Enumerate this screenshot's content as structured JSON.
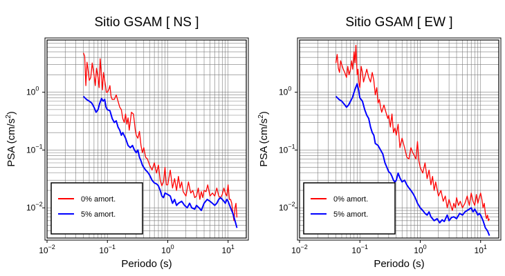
{
  "chart_data": [
    {
      "type": "line",
      "title": "Sitio GSAM [ NS ]",
      "xlabel": "Periodo (s)",
      "ylabel_main": "PSA (cm/s",
      "ylabel_sup": "2",
      "ylabel_tail": ")",
      "xscale": "log",
      "yscale": "log",
      "xlim": [
        0.01,
        20
      ],
      "ylim": [
        0.003,
        8
      ],
      "xticks": [
        {
          "base": "10",
          "exp": "−2"
        },
        {
          "base": "10",
          "exp": "−1"
        },
        {
          "base": "10",
          "exp": "0"
        },
        {
          "base": "10",
          "exp": "1"
        }
      ],
      "yticks": [
        {
          "base": "10",
          "exp": "−2"
        },
        {
          "base": "10",
          "exp": "−1"
        },
        {
          "base": "10",
          "exp": "0"
        }
      ],
      "grid": true,
      "legend_position": "bottom-left",
      "series": [
        {
          "name": "0% amort.",
          "color": "#ff0000",
          "x": [
            0.04,
            0.042,
            0.044,
            0.046,
            0.048,
            0.05,
            0.053,
            0.056,
            0.06,
            0.063,
            0.066,
            0.07,
            0.073,
            0.076,
            0.08,
            0.083,
            0.086,
            0.09,
            0.093,
            0.096,
            0.1,
            0.105,
            0.11,
            0.115,
            0.12,
            0.13,
            0.14,
            0.15,
            0.16,
            0.17,
            0.18,
            0.19,
            0.2,
            0.21,
            0.22,
            0.23,
            0.25,
            0.27,
            0.29,
            0.3,
            0.32,
            0.34,
            0.36,
            0.38,
            0.4,
            0.43,
            0.46,
            0.5,
            0.55,
            0.6,
            0.65,
            0.7,
            0.75,
            0.8,
            0.85,
            0.9,
            0.95,
            1.0,
            1.1,
            1.2,
            1.3,
            1.4,
            1.5,
            1.6,
            1.7,
            1.8,
            2.0,
            2.2,
            2.4,
            2.6,
            2.8,
            3.0,
            3.2,
            3.4,
            3.6,
            3.8,
            4.0,
            4.3,
            4.6,
            5.0,
            5.5,
            6.0,
            6.5,
            7.0,
            7.5,
            8.0,
            8.5,
            9.0,
            9.5,
            10,
            10.5,
            11,
            11.5,
            12,
            12.5,
            13,
            13.5,
            14
          ],
          "y": [
            4.8,
            4.2,
            1.3,
            3.3,
            2.4,
            1.6,
            1.8,
            3.2,
            2.0,
            1.3,
            2.6,
            1.8,
            1.2,
            3.8,
            1.8,
            1.1,
            2.2,
            1.6,
            1.3,
            1.0,
            1.0,
            1.1,
            1.3,
            0.85,
            0.75,
            0.75,
            0.9,
            0.7,
            0.55,
            0.5,
            0.35,
            0.3,
            0.42,
            0.28,
            0.36,
            0.22,
            0.45,
            0.42,
            0.22,
            0.18,
            0.16,
            0.21,
            0.12,
            0.09,
            0.11,
            0.075,
            0.07,
            0.055,
            0.045,
            0.06,
            0.04,
            0.055,
            0.03,
            0.024,
            0.028,
            0.05,
            0.025,
            0.025,
            0.045,
            0.022,
            0.032,
            0.02,
            0.035,
            0.022,
            0.028,
            0.019,
            0.016,
            0.028,
            0.018,
            0.02,
            0.015,
            0.016,
            0.022,
            0.014,
            0.019,
            0.015,
            0.02,
            0.019,
            0.025,
            0.016,
            0.018,
            0.016,
            0.022,
            0.016,
            0.015,
            0.017,
            0.022,
            0.018,
            0.016,
            0.025,
            0.014,
            0.014,
            0.012,
            0.008,
            0.006,
            0.01,
            0.012,
            0.0068
          ]
        },
        {
          "name": "5% amort.",
          "color": "#0000ff",
          "x": [
            0.04,
            0.045,
            0.05,
            0.055,
            0.06,
            0.065,
            0.07,
            0.075,
            0.08,
            0.085,
            0.09,
            0.095,
            0.1,
            0.11,
            0.12,
            0.13,
            0.14,
            0.15,
            0.16,
            0.17,
            0.18,
            0.2,
            0.22,
            0.24,
            0.26,
            0.28,
            0.3,
            0.32,
            0.34,
            0.36,
            0.38,
            0.4,
            0.43,
            0.46,
            0.5,
            0.55,
            0.6,
            0.65,
            0.7,
            0.75,
            0.8,
            0.85,
            0.9,
            1.0,
            1.1,
            1.2,
            1.3,
            1.4,
            1.5,
            1.7,
            1.9,
            2.1,
            2.3,
            2.5,
            2.8,
            3.0,
            3.3,
            3.6,
            4.0,
            4.5,
            5.0,
            5.5,
            6.0,
            6.5,
            7.0,
            7.5,
            8.0,
            8.5,
            9.0,
            9.5,
            10,
            11,
            12,
            13,
            14
          ],
          "y": [
            0.85,
            0.75,
            0.7,
            0.65,
            0.55,
            0.45,
            0.5,
            0.65,
            0.78,
            0.7,
            0.75,
            0.55,
            0.5,
            0.48,
            0.35,
            0.3,
            0.32,
            0.25,
            0.22,
            0.18,
            0.2,
            0.16,
            0.12,
            0.11,
            0.12,
            0.1,
            0.09,
            0.1,
            0.075,
            0.065,
            0.055,
            0.05,
            0.045,
            0.042,
            0.037,
            0.03,
            0.027,
            0.026,
            0.024,
            0.02,
            0.016,
            0.015,
            0.018,
            0.017,
            0.016,
            0.012,
            0.014,
            0.011,
            0.012,
            0.013,
            0.011,
            0.01,
            0.012,
            0.01,
            0.0095,
            0.011,
            0.01,
            0.009,
            0.012,
            0.014,
            0.013,
            0.012,
            0.011,
            0.012,
            0.014,
            0.015,
            0.014,
            0.013,
            0.012,
            0.014,
            0.013,
            0.01,
            0.008,
            0.006,
            0.0045
          ]
        }
      ]
    },
    {
      "type": "line",
      "title": "Sitio GSAM [ EW ]",
      "xlabel": "Periodo (s)",
      "ylabel_main": "PSA (cm/s",
      "ylabel_sup": "2",
      "ylabel_tail": ")",
      "xscale": "log",
      "yscale": "log",
      "xlim": [
        0.01,
        20
      ],
      "ylim": [
        0.003,
        8
      ],
      "xticks": [
        {
          "base": "10",
          "exp": "−2"
        },
        {
          "base": "10",
          "exp": "−1"
        },
        {
          "base": "10",
          "exp": "0"
        },
        {
          "base": "10",
          "exp": "1"
        }
      ],
      "yticks": [
        {
          "base": "10",
          "exp": "−2"
        },
        {
          "base": "10",
          "exp": "−1"
        },
        {
          "base": "10",
          "exp": "0"
        }
      ],
      "grid": true,
      "legend_position": "bottom-left",
      "series": [
        {
          "name": "0% amort.",
          "color": "#ff0000",
          "x": [
            0.04,
            0.042,
            0.044,
            0.046,
            0.048,
            0.05,
            0.053,
            0.056,
            0.06,
            0.063,
            0.066,
            0.07,
            0.073,
            0.076,
            0.08,
            0.083,
            0.086,
            0.09,
            0.093,
            0.096,
            0.1,
            0.105,
            0.11,
            0.115,
            0.12,
            0.13,
            0.14,
            0.15,
            0.16,
            0.17,
            0.18,
            0.19,
            0.2,
            0.21,
            0.22,
            0.23,
            0.25,
            0.27,
            0.29,
            0.3,
            0.32,
            0.34,
            0.36,
            0.38,
            0.4,
            0.43,
            0.46,
            0.5,
            0.55,
            0.6,
            0.65,
            0.7,
            0.75,
            0.8,
            0.85,
            0.9,
            0.95,
            1.0,
            1.1,
            1.2,
            1.3,
            1.4,
            1.5,
            1.6,
            1.7,
            1.8,
            2.0,
            2.2,
            2.4,
            2.6,
            2.8,
            3.0,
            3.2,
            3.4,
            3.6,
            3.8,
            4.0,
            4.3,
            4.6,
            5.0,
            5.5,
            6.0,
            6.5,
            7.0,
            7.5,
            8.0,
            8.5,
            9.0,
            9.5,
            10,
            10.5,
            11,
            11.5,
            12,
            12.5,
            13,
            13.5,
            14
          ],
          "y": [
            3.2,
            4.5,
            2.6,
            2.2,
            3.5,
            3.0,
            2.5,
            2.2,
            1.8,
            2.8,
            2.0,
            2.5,
            3.5,
            2.5,
            5.0,
            3.2,
            6.5,
            2.0,
            2.5,
            1.5,
            1.2,
            2.8,
            2.2,
            1.5,
            1.8,
            2.5,
            1.8,
            1.5,
            2.2,
            1.6,
            0.9,
            1.2,
            0.65,
            0.75,
            0.55,
            0.45,
            0.6,
            0.45,
            0.35,
            0.4,
            0.25,
            0.42,
            0.2,
            0.24,
            0.18,
            0.28,
            0.11,
            0.16,
            0.11,
            0.075,
            0.07,
            0.11,
            0.09,
            0.08,
            0.07,
            0.14,
            0.065,
            0.05,
            0.04,
            0.06,
            0.032,
            0.045,
            0.025,
            0.035,
            0.02,
            0.028,
            0.016,
            0.02,
            0.013,
            0.016,
            0.01,
            0.014,
            0.011,
            0.009,
            0.012,
            0.01,
            0.015,
            0.011,
            0.013,
            0.01,
            0.012,
            0.016,
            0.011,
            0.018,
            0.013,
            0.011,
            0.017,
            0.012,
            0.015,
            0.018,
            0.014,
            0.01,
            0.012,
            0.008,
            0.0065,
            0.0075,
            0.006,
            0.0065
          ]
        },
        {
          "name": "5% amort.",
          "color": "#0000ff",
          "x": [
            0.04,
            0.045,
            0.05,
            0.055,
            0.06,
            0.065,
            0.07,
            0.075,
            0.08,
            0.085,
            0.09,
            0.095,
            0.1,
            0.11,
            0.12,
            0.13,
            0.14,
            0.15,
            0.16,
            0.17,
            0.18,
            0.2,
            0.22,
            0.24,
            0.26,
            0.28,
            0.3,
            0.32,
            0.34,
            0.36,
            0.38,
            0.4,
            0.43,
            0.46,
            0.5,
            0.55,
            0.6,
            0.65,
            0.7,
            0.75,
            0.8,
            0.85,
            0.9,
            1.0,
            1.1,
            1.2,
            1.3,
            1.4,
            1.5,
            1.7,
            1.9,
            2.1,
            2.3,
            2.5,
            2.8,
            3.0,
            3.3,
            3.6,
            4.0,
            4.5,
            5.0,
            5.5,
            6.0,
            6.5,
            7.0,
            7.5,
            8.0,
            8.5,
            9.0,
            9.5,
            10,
            11,
            12,
            13,
            14
          ],
          "y": [
            0.85,
            0.75,
            0.7,
            0.62,
            0.55,
            0.6,
            0.7,
            0.8,
            1.0,
            1.2,
            1.4,
            1.1,
            0.8,
            0.7,
            0.5,
            0.4,
            0.35,
            0.25,
            0.2,
            0.18,
            0.13,
            0.12,
            0.1,
            0.085,
            0.06,
            0.05,
            0.042,
            0.04,
            0.035,
            0.03,
            0.028,
            0.03,
            0.04,
            0.033,
            0.028,
            0.03,
            0.025,
            0.022,
            0.02,
            0.018,
            0.016,
            0.014,
            0.012,
            0.01,
            0.009,
            0.008,
            0.0075,
            0.0085,
            0.007,
            0.006,
            0.0065,
            0.0055,
            0.0062,
            0.0058,
            0.0075,
            0.006,
            0.0068,
            0.007,
            0.0065,
            0.008,
            0.0075,
            0.0085,
            0.009,
            0.0095,
            0.01,
            0.0085,
            0.0095,
            0.0085,
            0.0075,
            0.008,
            0.0075,
            0.006,
            0.0045,
            0.004,
            0.0033
          ]
        }
      ]
    }
  ]
}
